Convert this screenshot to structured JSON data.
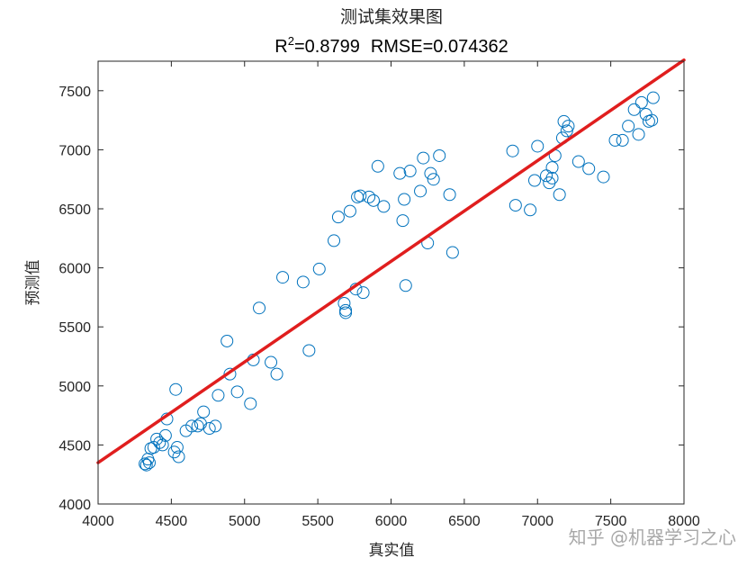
{
  "chart_data": {
    "type": "scatter",
    "title": "测试集效果图",
    "subtitle": {
      "r2_label": "R",
      "r2_sup": "2",
      "r2_value": "=0.8799",
      "rmse": "RMSE=0.074362"
    },
    "xlabel": "真实值",
    "ylabel": "预测值",
    "xlim": [
      4000,
      8000
    ],
    "ylim": [
      4000,
      7750
    ],
    "xticks": [
      4000,
      4500,
      5000,
      5500,
      6000,
      6500,
      7000,
      7500,
      8000
    ],
    "yticks": [
      4000,
      4500,
      5000,
      5500,
      6000,
      6500,
      7000,
      7500
    ],
    "grid": false,
    "fit_line": {
      "x": [
        4000,
        8000
      ],
      "y": [
        4350,
        7760
      ],
      "color": "#e01e1e"
    },
    "marker_color": "#0072bd",
    "points": {
      "x": [
        4320,
        4330,
        4340,
        4350,
        4360,
        4380,
        4400,
        4420,
        4440,
        4460,
        4470,
        4530,
        4520,
        4540,
        4550,
        4600,
        4640,
        4680,
        4700,
        4720,
        4760,
        4800,
        4820,
        4880,
        4900,
        4950,
        5040,
        5060,
        5100,
        5180,
        5220,
        5260,
        5400,
        5440,
        5510,
        5610,
        5640,
        5680,
        5690,
        5690,
        5720,
        5760,
        5770,
        5790,
        5810,
        5850,
        5880,
        5910,
        5950,
        6060,
        6080,
        6090,
        6100,
        6130,
        6200,
        6220,
        6250,
        6270,
        6290,
        6330,
        6400,
        6420,
        6830,
        6850,
        6950,
        6980,
        7000,
        7060,
        7080,
        7100,
        7100,
        7120,
        7150,
        7170,
        7180,
        7200,
        7210,
        7280,
        7350,
        7450,
        7530,
        7580,
        7620,
        7660,
        7690,
        7710,
        7740,
        7760,
        7780,
        7790
      ],
      "y": [
        4340,
        4330,
        4380,
        4350,
        4470,
        4480,
        4550,
        4520,
        4500,
        4580,
        4720,
        4970,
        4440,
        4480,
        4400,
        4620,
        4660,
        4660,
        4680,
        4780,
        4640,
        4660,
        4920,
        5380,
        5100,
        4950,
        4850,
        5220,
        5660,
        5200,
        5100,
        5920,
        5880,
        5300,
        5990,
        6230,
        6430,
        5700,
        5640,
        5620,
        6480,
        5820,
        6600,
        6610,
        5790,
        6600,
        6570,
        6860,
        6520,
        6800,
        6400,
        6580,
        5850,
        6820,
        6650,
        6930,
        6210,
        6800,
        6750,
        6950,
        6620,
        6130,
        6990,
        6530,
        6490,
        6740,
        7030,
        6780,
        6720,
        6760,
        6850,
        6950,
        6620,
        7100,
        7240,
        7160,
        7200,
        6900,
        6840,
        6770,
        7080,
        7080,
        7200,
        7340,
        7130,
        7400,
        7300,
        7240,
        7250,
        7440
      ]
    }
  },
  "watermark": "知乎 @机器学习之心"
}
